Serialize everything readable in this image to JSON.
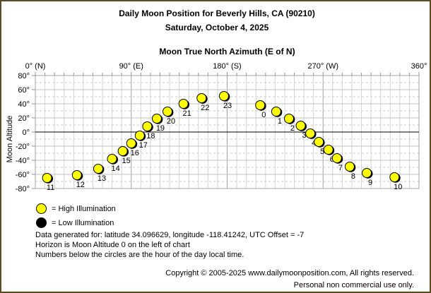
{
  "title": "Daily Moon Position for Beverly Hills, CA (90210)",
  "subtitle": "Saturday, October 4, 2025",
  "chart_data": {
    "type": "scatter",
    "title": "Moon True North Azimuth (E of N)",
    "xlabel": "Moon True North Azimuth (E of N)",
    "ylabel": "Moon Altitude",
    "xlim": [
      0,
      360
    ],
    "ylim": [
      -80,
      80
    ],
    "grid": "on",
    "x_ticks": [
      {
        "value": 0,
        "label": "0° (N)"
      },
      {
        "value": 90,
        "label": "90° (E)"
      },
      {
        "value": 180,
        "label": "180° (S)"
      },
      {
        "value": 270,
        "label": "270° (W)"
      },
      {
        "value": 360,
        "label": "360°"
      }
    ],
    "y_ticks": [
      {
        "value": 80,
        "label": "80°"
      },
      {
        "value": 60,
        "label": "60°"
      },
      {
        "value": 40,
        "label": "40°"
      },
      {
        "value": 20,
        "label": "20°"
      },
      {
        "value": 0,
        "label": "0°"
      },
      {
        "value": -20,
        "label": "-20°"
      },
      {
        "value": -40,
        "label": "-40°"
      },
      {
        "value": -60,
        "label": "-60°"
      },
      {
        "value": -80,
        "label": "-80°"
      }
    ],
    "series": [
      {
        "name": "High Illumination",
        "marker_color": "#ffff00",
        "points": [
          {
            "hour": "0",
            "azimuth": 211,
            "altitude": 38
          },
          {
            "hour": "1",
            "azimuth": 226,
            "altitude": 29
          },
          {
            "hour": "2",
            "azimuth": 238,
            "altitude": 19
          },
          {
            "hour": "3",
            "azimuth": 249,
            "altitude": 9
          },
          {
            "hour": "4",
            "azimuth": 258,
            "altitude": -2
          },
          {
            "hour": "5",
            "azimuth": 266,
            "altitude": -14
          },
          {
            "hour": "6",
            "azimuth": 275,
            "altitude": -25
          },
          {
            "hour": "7",
            "azimuth": 283,
            "altitude": -37
          },
          {
            "hour": "8",
            "azimuth": 295,
            "altitude": -49
          },
          {
            "hour": "9",
            "azimuth": 311,
            "altitude": -58
          },
          {
            "hour": "10",
            "azimuth": 337,
            "altitude": -64
          },
          {
            "hour": "11",
            "azimuth": 11,
            "altitude": -65
          },
          {
            "hour": "12",
            "azimuth": 39,
            "altitude": -61
          },
          {
            "hour": "13",
            "azimuth": 59,
            "altitude": -52
          },
          {
            "hour": "14",
            "azimuth": 72,
            "altitude": -38
          },
          {
            "hour": "15",
            "azimuth": 82,
            "altitude": -27
          },
          {
            "hour": "16",
            "azimuth": 90,
            "altitude": -16
          },
          {
            "hour": "17",
            "azimuth": 98,
            "altitude": -5
          },
          {
            "hour": "18",
            "azimuth": 105,
            "altitude": 8
          },
          {
            "hour": "19",
            "azimuth": 114,
            "altitude": 19
          },
          {
            "hour": "20",
            "azimuth": 124,
            "altitude": 29
          },
          {
            "hour": "21",
            "azimuth": 139,
            "altitude": 40
          },
          {
            "hour": "22",
            "azimuth": 156,
            "altitude": 48
          },
          {
            "hour": "23",
            "azimuth": 177,
            "altitude": 51
          }
        ]
      }
    ]
  },
  "legend": [
    {
      "swatch_color": "#ffff00",
      "label": "= High Illumination"
    },
    {
      "swatch_color": "#000000",
      "label": "= Low Illumination"
    }
  ],
  "notes": [
    "Data generated for: latitude 34.096629, longitude -118.41242, UTC Offset = -7",
    "Horizon is Moon Altitude 0 on the left of chart",
    "Numbers below the circles are the hour of the day local time."
  ],
  "footer": [
    "Copyright © 2005-2025 www.dailymoonposition.com, All rights reserved.",
    "Personal non commercial use only."
  ],
  "colors": {
    "page_border": "#5a4c24",
    "marker_high": "#ffff00",
    "marker_low": "#000000",
    "grid_minor": "#d4d4d4",
    "grid_major": "#a4a4a4",
    "grid_h_solid": "#c0c0c0",
    "grid_h_dashed": "#c9c9c9",
    "horizon": "#000000"
  }
}
